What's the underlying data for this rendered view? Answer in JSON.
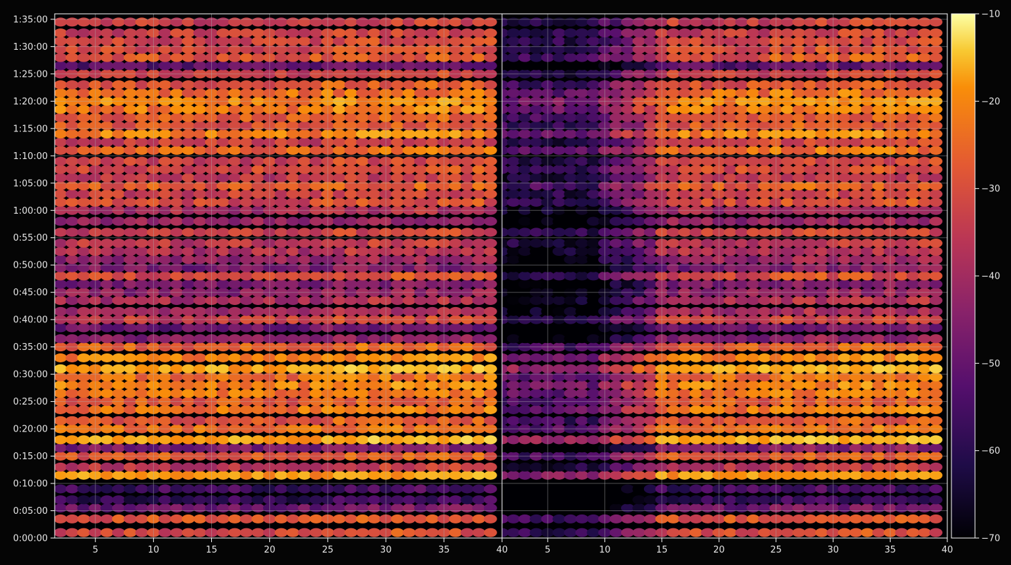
{
  "chart_data": {
    "type": "heatmap",
    "title": "",
    "xlabel": "",
    "ylabel": "",
    "panels": [
      {
        "name": "",
        "x_ticks": [
          "5",
          "10",
          "15",
          "20",
          "25",
          "30",
          "35",
          "40"
        ],
        "xlim": [
          1.5,
          40
        ]
      },
      {
        "name": "",
        "x_ticks": [
          "5",
          "10",
          "15",
          "20",
          "25",
          "30",
          "35",
          "40"
        ],
        "xlim": [
          1,
          40
        ]
      }
    ],
    "y_ticks": [
      "0:00:00",
      "0:05:00",
      "0:10:00",
      "0:15:00",
      "0:20:00",
      "0:25:00",
      "0:30:00",
      "0:35:00",
      "0:40:00",
      "0:45:00",
      "0:50:00",
      "0:55:00",
      "1:00:00",
      "1:05:00",
      "1:10:00",
      "1:15:00",
      "1:20:00",
      "1:25:00",
      "1:30:00",
      "1:35:00"
    ],
    "ylim_minutes": [
      0,
      96
    ],
    "colorbar": {
      "colormap": "inferno",
      "range": [
        -70,
        -10
      ],
      "ticks": [
        "−10",
        "−20",
        "−30",
        "−40",
        "−50",
        "−60",
        "−70"
      ]
    },
    "grid": true,
    "bands": [
      {
        "t": 1,
        "db": -36
      },
      {
        "t": 3.5,
        "db": -34
      },
      {
        "t": 5.5,
        "db": -52
      },
      {
        "t": 7,
        "db": -60
      },
      {
        "t": 9,
        "db": -58
      },
      {
        "t": 11.5,
        "db": -24
      },
      {
        "t": 13,
        "db": -40
      },
      {
        "t": 15,
        "db": -33
      },
      {
        "t": 16.5,
        "db": -50
      },
      {
        "t": 18,
        "db": -22
      },
      {
        "t": 20,
        "db": -30
      },
      {
        "t": 21.5,
        "db": -34
      },
      {
        "t": 23.5,
        "db": -29
      },
      {
        "t": 25,
        "db": -33
      },
      {
        "t": 26.5,
        "db": -29
      },
      {
        "t": 28,
        "db": -27
      },
      {
        "t": 29.5,
        "db": -30
      },
      {
        "t": 31,
        "db": -22
      },
      {
        "t": 33,
        "db": -27
      },
      {
        "t": 35,
        "db": -32
      },
      {
        "t": 36.5,
        "db": -48
      },
      {
        "t": 38.5,
        "db": -52
      },
      {
        "t": 40,
        "db": -38
      },
      {
        "t": 41.5,
        "db": -44
      },
      {
        "t": 43.5,
        "db": -43
      },
      {
        "t": 45,
        "db": -47
      },
      {
        "t": 46.5,
        "db": -50
      },
      {
        "t": 48,
        "db": -36
      },
      {
        "t": 49.5,
        "db": -50
      },
      {
        "t": 51,
        "db": -46
      },
      {
        "t": 52.5,
        "db": -42
      },
      {
        "t": 54,
        "db": -40
      },
      {
        "t": 56,
        "db": -38
      },
      {
        "t": 58,
        "db": -46
      },
      {
        "t": 60,
        "db": -43
      },
      {
        "t": 61.5,
        "db": -36
      },
      {
        "t": 63,
        "db": -38
      },
      {
        "t": 64.5,
        "db": -33
      },
      {
        "t": 66,
        "db": -40
      },
      {
        "t": 67.5,
        "db": -36
      },
      {
        "t": 69,
        "db": -38
      },
      {
        "t": 71,
        "db": -31
      },
      {
        "t": 72.5,
        "db": -38
      },
      {
        "t": 74,
        "db": -27
      },
      {
        "t": 75.5,
        "db": -34
      },
      {
        "t": 77,
        "db": -33
      },
      {
        "t": 78.5,
        "db": -28
      },
      {
        "t": 80,
        "db": -26
      },
      {
        "t": 81.5,
        "db": -30
      },
      {
        "t": 83,
        "db": -34
      },
      {
        "t": 85,
        "db": -38
      },
      {
        "t": 86.5,
        "db": -54
      },
      {
        "t": 88,
        "db": -34
      },
      {
        "t": 89.5,
        "db": -36
      },
      {
        "t": 91,
        "db": -37
      },
      {
        "t": 92.5,
        "db": -38
      },
      {
        "t": 94.5,
        "db": -38
      }
    ]
  }
}
